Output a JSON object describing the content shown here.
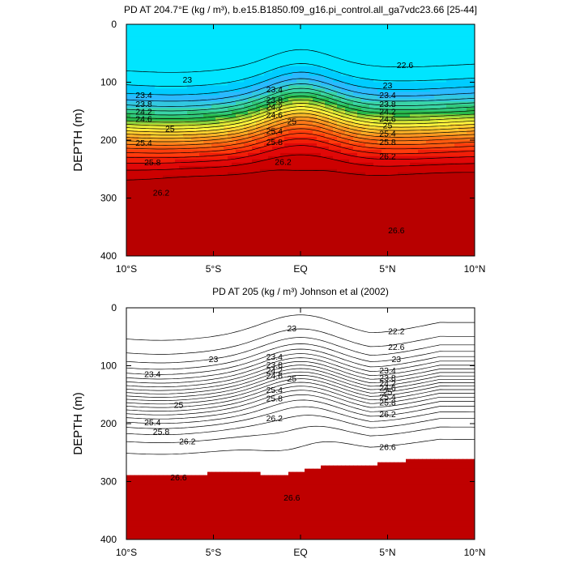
{
  "colors": {
    "bands": [
      "#00e5ff",
      "#00ccff",
      "#2bb9ff",
      "#32c8e0",
      "#3ad5a8",
      "#30c87a",
      "#28b84a",
      "#8ed23c",
      "#d8e635",
      "#fff23c",
      "#ffd230",
      "#ffb428",
      "#ff9620",
      "#ff7818",
      "#ff5a10",
      "#ff3c0c",
      "#f01e08",
      "#e00808",
      "#cc0000",
      "#b80000"
    ],
    "deep": "#bf0000"
  },
  "chart_data": [
    {
      "type": "contour",
      "title": "PD AT 204.7°E (kg / m³), b.e15.B1850.f09_g16.pi_control.all_ga7vdc23.66 [25-44]",
      "xlabel": "",
      "ylabel": "DEPTH (m)",
      "x_ticks": [
        "10°S",
        "5°S",
        "EQ",
        "5°N",
        "10°N"
      ],
      "x_range": [
        -10,
        10
      ],
      "y_ticks": [
        "0",
        "100",
        "200",
        "300",
        "400"
      ],
      "y_range": [
        0,
        400
      ],
      "filled": true,
      "contour_levels": [
        22.2,
        22.4,
        22.6,
        22.8,
        23.0,
        23.2,
        23.4,
        23.6,
        23.8,
        24.0,
        24.2,
        24.4,
        24.6,
        24.8,
        25.0,
        25.2,
        25.4,
        25.6,
        25.8,
        26.0,
        26.2,
        26.4,
        26.6
      ],
      "contour_labels": [
        {
          "text": "22.6",
          "lat": 6.0,
          "depth": 70
        },
        {
          "text": "23",
          "lat": -6.5,
          "depth": 95
        },
        {
          "text": "23",
          "lat": 5.0,
          "depth": 105
        },
        {
          "text": "23.4",
          "lat": -9.0,
          "depth": 122
        },
        {
          "text": "23.4",
          "lat": -1.5,
          "depth": 112
        },
        {
          "text": "23.4",
          "lat": 5.0,
          "depth": 122
        },
        {
          "text": "23.8",
          "lat": -9.0,
          "depth": 137
        },
        {
          "text": "23.8",
          "lat": -1.5,
          "depth": 130
        },
        {
          "text": "23.8",
          "lat": 5.0,
          "depth": 137
        },
        {
          "text": "24.2",
          "lat": -9.0,
          "depth": 150
        },
        {
          "text": "24.2",
          "lat": -1.5,
          "depth": 142
        },
        {
          "text": "24.2",
          "lat": 5.0,
          "depth": 150
        },
        {
          "text": "24.6",
          "lat": -9.0,
          "depth": 163
        },
        {
          "text": "24.6",
          "lat": -1.5,
          "depth": 156
        },
        {
          "text": "24.6",
          "lat": 5.0,
          "depth": 163
        },
        {
          "text": "25",
          "lat": -7.5,
          "depth": 180
        },
        {
          "text": "25",
          "lat": -0.5,
          "depth": 167
        },
        {
          "text": "25",
          "lat": 5.0,
          "depth": 174
        },
        {
          "text": "25.4",
          "lat": -9.0,
          "depth": 204
        },
        {
          "text": "25.4",
          "lat": -1.5,
          "depth": 184
        },
        {
          "text": "25.4",
          "lat": 5.0,
          "depth": 188
        },
        {
          "text": "25.8",
          "lat": -8.5,
          "depth": 238
        },
        {
          "text": "25.8",
          "lat": -1.5,
          "depth": 203
        },
        {
          "text": "25.8",
          "lat": 5.0,
          "depth": 203
        },
        {
          "text": "26.2",
          "lat": -8.0,
          "depth": 290
        },
        {
          "text": "26.2",
          "lat": -1.0,
          "depth": 237
        },
        {
          "text": "26.2",
          "lat": 5.0,
          "depth": 227
        },
        {
          "text": "26.6",
          "lat": 5.5,
          "depth": 355
        }
      ]
    },
    {
      "type": "contour",
      "title": "PD AT 205 (kg / m³) Johnson et al (2002)",
      "xlabel": "",
      "ylabel": "DEPTH (m)",
      "x_ticks": [
        "10°S",
        "5°S",
        "EQ",
        "5°N",
        "10°N"
      ],
      "x_range": [
        -10,
        10
      ],
      "y_ticks": [
        "0",
        "100",
        "200",
        "300",
        "400"
      ],
      "y_range": [
        0,
        400
      ],
      "filled": false,
      "shaded_above": 26.8,
      "contour_levels": [
        22.2,
        22.4,
        22.6,
        22.8,
        23.0,
        23.2,
        23.4,
        23.6,
        23.8,
        24.0,
        24.2,
        24.4,
        24.6,
        24.8,
        25.0,
        25.2,
        25.4,
        25.6,
        25.8,
        26.0,
        26.2,
        26.4,
        26.6
      ],
      "contour_labels": [
        {
          "text": "23",
          "lat": -0.5,
          "depth": 35
        },
        {
          "text": "22.2",
          "lat": 5.5,
          "depth": 40
        },
        {
          "text": "22.6",
          "lat": 5.5,
          "depth": 67
        },
        {
          "text": "23",
          "lat": -5.0,
          "depth": 88
        },
        {
          "text": "23",
          "lat": 5.5,
          "depth": 88
        },
        {
          "text": "23.4",
          "lat": -8.5,
          "depth": 114
        },
        {
          "text": "23.4",
          "lat": -1.5,
          "depth": 84
        },
        {
          "text": "23.4",
          "lat": 5.0,
          "depth": 108
        },
        {
          "text": "23.8",
          "lat": -1.5,
          "depth": 98
        },
        {
          "text": "23.8",
          "lat": 5.0,
          "depth": 120
        },
        {
          "text": "24.2",
          "lat": -1.5,
          "depth": 108
        },
        {
          "text": "24.2",
          "lat": 5.0,
          "depth": 130
        },
        {
          "text": "24.6",
          "lat": -1.5,
          "depth": 117
        },
        {
          "text": "24.6",
          "lat": 5.0,
          "depth": 138
        },
        {
          "text": "25",
          "lat": -0.5,
          "depth": 122
        },
        {
          "text": "25",
          "lat": 5.0,
          "depth": 145
        },
        {
          "text": "25.4",
          "lat": -1.5,
          "depth": 141
        },
        {
          "text": "25.4",
          "lat": 5.0,
          "depth": 153
        },
        {
          "text": "25",
          "lat": -7.0,
          "depth": 167
        },
        {
          "text": "25.4",
          "lat": -8.5,
          "depth": 197
        },
        {
          "text": "25.8",
          "lat": -1.5,
          "depth": 156
        },
        {
          "text": "25.8",
          "lat": 5.0,
          "depth": 163
        },
        {
          "text": "25.8",
          "lat": -8.0,
          "depth": 213
        },
        {
          "text": "26.2",
          "lat": -1.5,
          "depth": 190
        },
        {
          "text": "26.2",
          "lat": 5.0,
          "depth": 183
        },
        {
          "text": "26.2",
          "lat": -6.5,
          "depth": 230
        },
        {
          "text": "26.6",
          "lat": 5.0,
          "depth": 240
        },
        {
          "text": "26.6",
          "lat": -7.0,
          "depth": 292
        },
        {
          "text": "26.6",
          "lat": -0.5,
          "depth": 327
        }
      ]
    }
  ]
}
